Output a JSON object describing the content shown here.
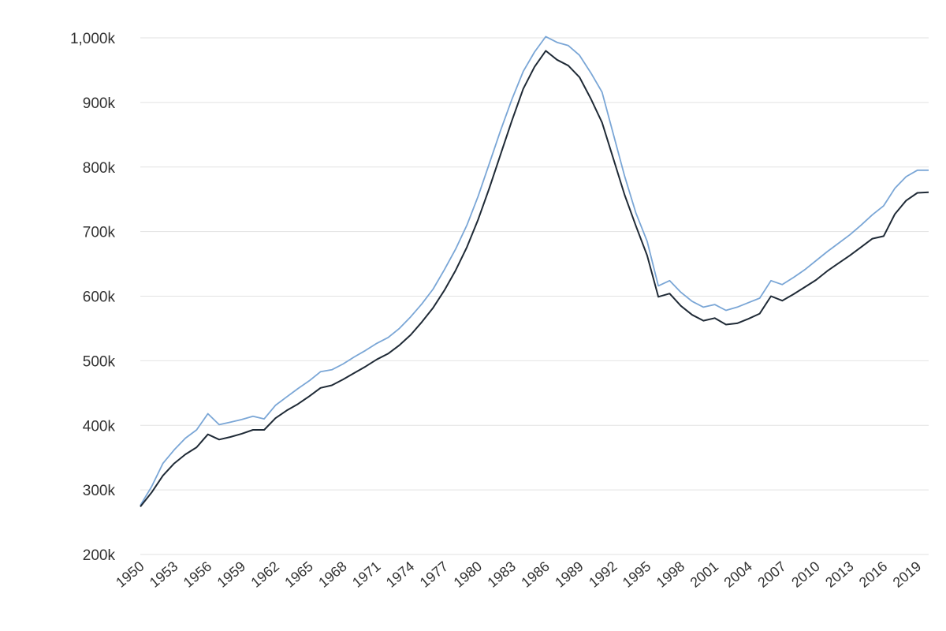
{
  "chart_data": {
    "type": "line",
    "title": "",
    "xlabel": "",
    "ylabel": "",
    "grid": "horizontal",
    "legend": "none",
    "ylim": [
      200000,
      1000000
    ],
    "xlim": [
      1950,
      2020
    ],
    "yticks": [
      200000,
      300000,
      400000,
      500000,
      600000,
      700000,
      800000,
      900000,
      1000000
    ],
    "ytick_labels": [
      "200k",
      "300k",
      "400k",
      "500k",
      "600k",
      "700k",
      "800k",
      "900k",
      "1,000k"
    ],
    "xticks": [
      1950,
      1953,
      1956,
      1959,
      1962,
      1965,
      1968,
      1971,
      1974,
      1977,
      1980,
      1983,
      1986,
      1989,
      1992,
      1995,
      1998,
      2001,
      2004,
      2007,
      2010,
      2013,
      2016,
      2019
    ],
    "xtick_labels": [
      "1950",
      "1953",
      "1956",
      "1959",
      "1962",
      "1965",
      "1968",
      "1971",
      "1974",
      "1977",
      "1980",
      "1983",
      "1986",
      "1989",
      "1992",
      "1995",
      "1998",
      "2001",
      "2004",
      "2007",
      "2010",
      "2013",
      "2016",
      "2019"
    ],
    "x": [
      1950,
      1951,
      1952,
      1953,
      1954,
      1955,
      1956,
      1957,
      1958,
      1959,
      1960,
      1961,
      1962,
      1963,
      1964,
      1965,
      1966,
      1967,
      1968,
      1969,
      1970,
      1971,
      1972,
      1973,
      1974,
      1975,
      1976,
      1977,
      1978,
      1979,
      1980,
      1981,
      1982,
      1983,
      1984,
      1985,
      1986,
      1987,
      1988,
      1989,
      1990,
      1991,
      1992,
      1993,
      1994,
      1995,
      1996,
      1997,
      1998,
      1999,
      2000,
      2001,
      2002,
      2003,
      2004,
      2005,
      2006,
      2007,
      2008,
      2009,
      2010,
      2011,
      2012,
      2013,
      2014,
      2015,
      2016,
      2017,
      2018,
      2019,
      2020
    ],
    "series": [
      {
        "color": "#7aa6d6",
        "values": [
          276000,
          305000,
          341000,
          362000,
          380000,
          393000,
          418000,
          401000,
          405000,
          409000,
          414000,
          410000,
          431000,
          444000,
          457000,
          469000,
          483000,
          486000,
          495000,
          506000,
          516000,
          527000,
          536000,
          550000,
          568000,
          588000,
          611000,
          641000,
          673000,
          710000,
          755000,
          806000,
          857000,
          905000,
          948000,
          978000,
          1002000,
          993000,
          988000,
          973000,
          946000,
          916000,
          851000,
          786000,
          729000,
          685000,
          616000,
          624000,
          606000,
          592000,
          583000,
          587000,
          578000,
          583000,
          590000,
          597000,
          624000,
          618000,
          629000,
          641000,
          655000,
          669000,
          682000,
          695000,
          710000,
          726000,
          740000,
          767000,
          785000,
          795000,
          795000
        ]
      },
      {
        "color": "#1f2a36",
        "values": [
          274000,
          296000,
          322000,
          341000,
          355000,
          366000,
          386000,
          378000,
          382000,
          387000,
          393000,
          393000,
          411000,
          423000,
          433000,
          445000,
          458000,
          462000,
          471000,
          481000,
          491000,
          502000,
          511000,
          524000,
          540000,
          560000,
          582000,
          609000,
          640000,
          676000,
          719000,
          768000,
          820000,
          872000,
          921000,
          955000,
          980000,
          966000,
          957000,
          939000,
          906000,
          869000,
          813000,
          757000,
          709000,
          663000,
          599000,
          604000,
          585000,
          571000,
          562000,
          566000,
          556000,
          558000,
          565000,
          573000,
          600000,
          593000,
          603000,
          614000,
          625000,
          639000,
          651000,
          663000,
          676000,
          689000,
          693000,
          727000,
          748000,
          760000,
          761000
        ]
      }
    ]
  }
}
